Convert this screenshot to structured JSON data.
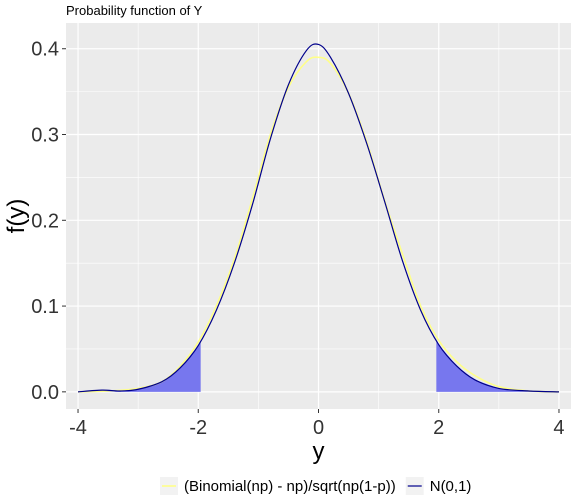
{
  "chart_data": {
    "type": "line",
    "title": "Probability function of Y",
    "xlabel": "y",
    "ylabel": "f(y)",
    "xlim": [
      -4.2,
      4.2
    ],
    "ylim": [
      -0.02,
      0.43
    ],
    "xticks": [
      -4,
      -2,
      0,
      2,
      4
    ],
    "xtick_labels": [
      "-4",
      "-2",
      "0",
      "2",
      "4"
    ],
    "yticks": [
      0.0,
      0.1,
      0.2,
      0.3,
      0.4
    ],
    "ytick_labels": [
      "0.0",
      "0.1",
      "0.2",
      "0.3",
      "0.4"
    ],
    "grid": true,
    "legend_position": "bottom",
    "shaded_regions": [
      {
        "from": -4,
        "to": -1.96,
        "color": "#7777ee"
      },
      {
        "from": 1.96,
        "to": 4,
        "color": "#7777ee"
      }
    ],
    "series": [
      {
        "name": "(Binomial(np) - np)/sqrt(np(1-p))",
        "color": "#ffff88",
        "x": [
          -4,
          -3.5,
          -3,
          -2.6,
          -2.3,
          -2,
          -1.7,
          -1.4,
          -1.1,
          -0.8,
          -0.5,
          -0.2,
          0,
          0.2,
          0.5,
          0.8,
          1.1,
          1.4,
          1.7,
          2,
          2.3,
          2.6,
          3,
          3.5,
          4
        ],
        "y": [
          0.0,
          0.001,
          0.004,
          0.012,
          0.03,
          0.058,
          0.1,
          0.155,
          0.225,
          0.3,
          0.355,
          0.385,
          0.39,
          0.383,
          0.348,
          0.292,
          0.223,
          0.16,
          0.1,
          0.06,
          0.035,
          0.019,
          0.006,
          0.001,
          0.0
        ]
      },
      {
        "name": "N(0,1)",
        "color": "#00008b",
        "x": [
          -4,
          -3.6,
          -3.3,
          -3,
          -2.6,
          -2.3,
          -2,
          -1.7,
          -1.4,
          -1.1,
          -0.8,
          -0.5,
          -0.2,
          0,
          0.2,
          0.5,
          0.8,
          1.1,
          1.4,
          1.7,
          2,
          2.3,
          2.6,
          3,
          3.5,
          4
        ],
        "y": [
          0.0,
          0.002,
          0.001,
          0.003,
          0.012,
          0.028,
          0.054,
          0.095,
          0.15,
          0.218,
          0.295,
          0.358,
          0.398,
          0.405,
          0.39,
          0.348,
          0.29,
          0.222,
          0.152,
          0.095,
          0.055,
          0.03,
          0.014,
          0.004,
          0.001,
          0.0
        ]
      }
    ]
  }
}
